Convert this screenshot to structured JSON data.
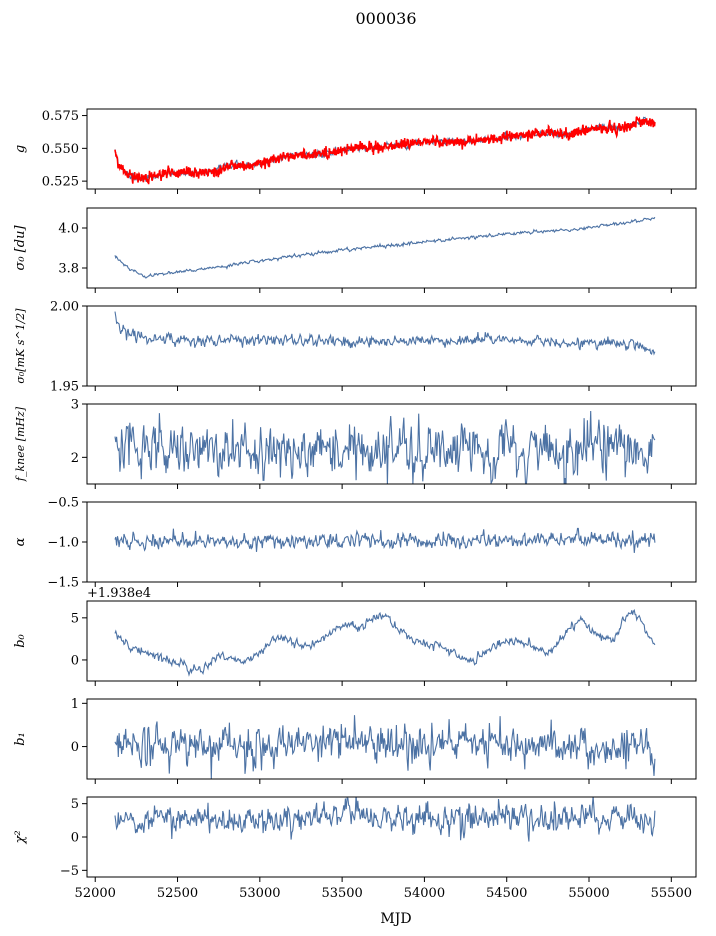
{
  "figure": {
    "title": "000036",
    "xlabel": "MJD"
  },
  "colors": {
    "series": "#4c72a4",
    "overlay": "#ff0000",
    "axis": "#000000",
    "background": "#ffffff"
  },
  "chart_data": [
    {
      "type": "line",
      "ylabel": "g",
      "xlim": [
        51950,
        55650
      ],
      "ylim": [
        0.519,
        0.58
      ],
      "yticks": [
        0.525,
        0.55,
        0.575
      ],
      "ytick_labels": [
        "0.525",
        "0.550",
        "0.575"
      ],
      "show_x_tick_labels": false,
      "offset_text": "",
      "noise": 0.0012,
      "overlay": {
        "name": "",
        "noise": 0.0018
      },
      "trend": [
        [
          52120,
          0.548
        ],
        [
          52140,
          0.538
        ],
        [
          52200,
          0.53
        ],
        [
          52300,
          0.527
        ],
        [
          52450,
          0.531
        ],
        [
          52600,
          0.531
        ],
        [
          52700,
          0.532
        ],
        [
          52850,
          0.537
        ],
        [
          53000,
          0.538
        ],
        [
          53200,
          0.545
        ],
        [
          53400,
          0.546
        ],
        [
          53500,
          0.549
        ],
        [
          53700,
          0.551
        ],
        [
          53900,
          0.553
        ],
        [
          54000,
          0.555
        ],
        [
          54200,
          0.555
        ],
        [
          54400,
          0.557
        ],
        [
          54550,
          0.559
        ],
        [
          54750,
          0.562
        ],
        [
          54900,
          0.561
        ],
        [
          55050,
          0.566
        ],
        [
          55200,
          0.565
        ],
        [
          55300,
          0.571
        ],
        [
          55400,
          0.57
        ]
      ]
    },
    {
      "type": "line",
      "ylabel": "σ₀ [du]",
      "xlim": [
        51950,
        55650
      ],
      "ylim": [
        3.7,
        4.1
      ],
      "yticks": [
        3.8,
        4.0
      ],
      "ytick_labels": [
        "3.8",
        "4.0"
      ],
      "show_x_tick_labels": false,
      "offset_text": "",
      "noise": 0.004,
      "trend": [
        [
          52120,
          3.86
        ],
        [
          52200,
          3.8
        ],
        [
          52300,
          3.76
        ],
        [
          52500,
          3.78
        ],
        [
          52800,
          3.81
        ],
        [
          53100,
          3.85
        ],
        [
          53500,
          3.89
        ],
        [
          54000,
          3.93
        ],
        [
          54500,
          3.97
        ],
        [
          55000,
          4.0
        ],
        [
          55400,
          4.05
        ]
      ]
    },
    {
      "type": "line",
      "ylabel": "σ₀[mK s^1/2]",
      "xlim": [
        51950,
        55650
      ],
      "ylim": [
        1.95,
        2.0
      ],
      "yticks": [
        1.95,
        2.0
      ],
      "ytick_labels": [
        "1.95",
        "2.00"
      ],
      "show_x_tick_labels": false,
      "offset_text": "",
      "noise": 0.0018,
      "trend": [
        [
          52120,
          1.995
        ],
        [
          52150,
          1.984
        ],
        [
          52300,
          1.98
        ],
        [
          52600,
          1.978
        ],
        [
          53000,
          1.979
        ],
        [
          53500,
          1.978
        ],
        [
          54000,
          1.978
        ],
        [
          54500,
          1.979
        ],
        [
          55000,
          1.977
        ],
        [
          55300,
          1.976
        ],
        [
          55400,
          1.97
        ]
      ]
    },
    {
      "type": "line",
      "ylabel": "f_knee [mHz]",
      "xlim": [
        51950,
        55650
      ],
      "ylim": [
        1.5,
        3.0
      ],
      "yticks": [
        2,
        3
      ],
      "ytick_labels": [
        "2",
        "3"
      ],
      "show_x_tick_labels": false,
      "offset_text": "",
      "noise": 0.25,
      "trend": [
        [
          52120,
          2.2
        ],
        [
          55400,
          2.1
        ]
      ]
    },
    {
      "type": "line",
      "ylabel": "α",
      "xlim": [
        51950,
        55650
      ],
      "ylim": [
        -1.5,
        -0.5
      ],
      "yticks": [
        -1.5,
        -1.0,
        -0.5
      ],
      "ytick_labels": [
        "−1.5",
        "−1.0",
        "−0.5"
      ],
      "show_x_tick_labels": false,
      "offset_text": "",
      "noise": 0.045,
      "trend": [
        [
          52120,
          -1.0
        ],
        [
          55400,
          -0.97
        ]
      ]
    },
    {
      "type": "line",
      "ylabel": "b₀",
      "xlim": [
        51950,
        55650
      ],
      "ylim": [
        -2.5,
        7.0
      ],
      "yticks": [
        0,
        5
      ],
      "ytick_labels": [
        "0",
        "5"
      ],
      "show_x_tick_labels": false,
      "offset_text": "+1.938e4",
      "noise": 0.25,
      "trend": [
        [
          52120,
          3.0
        ],
        [
          52200,
          1.5
        ],
        [
          52350,
          0.5
        ],
        [
          52500,
          -0.5
        ],
        [
          52600,
          -1.2
        ],
        [
          52650,
          -1.5
        ],
        [
          52750,
          0.5
        ],
        [
          52850,
          0.0
        ],
        [
          52900,
          -0.5
        ],
        [
          53000,
          1.0
        ],
        [
          53100,
          3.0
        ],
        [
          53200,
          2.0
        ],
        [
          53300,
          1.5
        ],
        [
          53450,
          3.5
        ],
        [
          53550,
          4.5
        ],
        [
          53600,
          3.5
        ],
        [
          53700,
          5.0
        ],
        [
          53750,
          5.5
        ],
        [
          53850,
          3.5
        ],
        [
          53950,
          2.0
        ],
        [
          54100,
          1.5
        ],
        [
          54200,
          0.5
        ],
        [
          54300,
          -0.3
        ],
        [
          54400,
          1.5
        ],
        [
          54500,
          2.0
        ],
        [
          54650,
          2.0
        ],
        [
          54750,
          0.5
        ],
        [
          54850,
          3.0
        ],
        [
          54950,
          5.0
        ],
        [
          55050,
          3.0
        ],
        [
          55150,
          2.5
        ],
        [
          55250,
          6.0
        ],
        [
          55300,
          5.0
        ],
        [
          55350,
          3.0
        ],
        [
          55400,
          2.0
        ]
      ]
    },
    {
      "type": "line",
      "ylabel": "b₁",
      "xlim": [
        51950,
        55650
      ],
      "ylim": [
        -0.75,
        1.1
      ],
      "yticks": [
        0,
        1
      ],
      "ytick_labels": [
        "0",
        "1"
      ],
      "show_x_tick_labels": false,
      "offset_text": "",
      "noise": 0.22,
      "trend": [
        [
          52120,
          0.0
        ],
        [
          55400,
          0.0
        ]
      ]
    },
    {
      "type": "line",
      "ylabel": "χ²",
      "xlim": [
        51950,
        55650
      ],
      "ylim": [
        -6,
        6
      ],
      "yticks": [
        -5,
        0,
        5
      ],
      "ytick_labels": [
        "−5",
        "0",
        "5"
      ],
      "show_x_tick_labels": true,
      "xticks": [
        52000,
        52500,
        53000,
        53500,
        54000,
        54500,
        55000,
        55500
      ],
      "xtick_labels": [
        "52000",
        "52500",
        "53000",
        "53500",
        "54000",
        "54500",
        "55000",
        "55500"
      ],
      "offset_text": "",
      "noise": 1.0,
      "trend": [
        [
          52120,
          2.8
        ],
        [
          55400,
          2.8
        ]
      ]
    }
  ]
}
